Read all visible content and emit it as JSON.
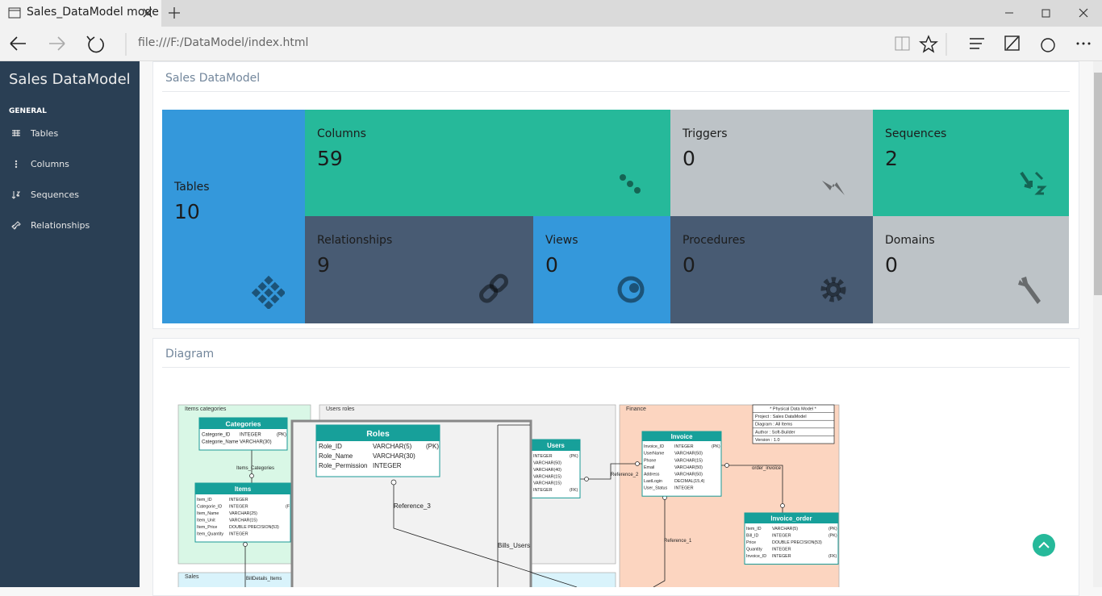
{
  "browser": {
    "tab_title": "Sales_DataModel mode",
    "url": "file:///F:/DataModel/index.html"
  },
  "sidebar": {
    "title": "Sales DataModel",
    "section": "GENERAL",
    "menu": [
      "Tables",
      "Columns",
      "Sequences",
      "Relationships"
    ]
  },
  "summary": {
    "title": "Sales DataModel",
    "tiles": [
      {
        "label": "Tables",
        "value": 10
      },
      {
        "label": "Columns",
        "value": 59
      },
      {
        "label": "Triggers",
        "value": 0
      },
      {
        "label": "Sequences",
        "value": 2
      },
      {
        "label": "Relationships",
        "value": 9
      },
      {
        "label": "Views",
        "value": 0
      },
      {
        "label": "Procedures",
        "value": 0
      },
      {
        "label": "Domains",
        "value": 0
      }
    ]
  },
  "diagram": {
    "title": "Diagram",
    "groups": [
      "Items categories",
      "Users roles",
      "Finance",
      "Sales"
    ],
    "tables": [
      {
        "name": "Categories",
        "rows": [
          [
            "Categorie_ID",
            "INTEGER",
            "(PK)"
          ],
          [
            "Categorie_Name",
            "VARCHAR(30)"
          ]
        ]
      },
      {
        "name": "Items",
        "rows": [
          [
            "Item_ID",
            "INTEGER"
          ],
          [
            "Categorie_ID",
            "INTEGER",
            "(F"
          ],
          [
            "Item_Name",
            "VARCHAR(25)"
          ],
          [
            "Item_Unit",
            "VARCHAR(15)"
          ],
          [
            "Item_Price",
            "DOUBLE PRECISION(53)"
          ],
          [
            "Item_Quantity",
            "INTEGER"
          ]
        ]
      },
      {
        "name": "Roles",
        "rows": [
          [
            "Role_ID",
            "VARCHAR(5)",
            "(PK)"
          ],
          [
            "Role_Name",
            "VARCHAR(30)"
          ],
          [
            "Role_Permission",
            "INTEGER"
          ]
        ]
      },
      {
        "name": "Users",
        "rows": [
          [
            "INTEGER",
            "(PK)"
          ],
          [
            "VARCHAR(50)"
          ],
          [
            "VARCHAR(40)"
          ],
          [
            "VARCHAR(15)"
          ],
          [
            "VARCHAR(15)"
          ],
          [
            "INTEGER",
            "(FK)"
          ]
        ]
      },
      {
        "name": "Invoice",
        "rows": [
          [
            "Invoice_ID",
            "INTEGER",
            "(PK)"
          ],
          [
            "UserName",
            "VARCHAR(50)"
          ],
          [
            "Phone",
            "VARCHAR(15)"
          ],
          [
            "Email",
            "VARCHAR(50)"
          ],
          [
            "Address",
            "VARCHAR(50)"
          ],
          [
            "LastLogin",
            "DECIMAL(15,4)"
          ],
          [
            "User_Status",
            "INTEGER"
          ]
        ]
      },
      {
        "name": "Invoice_order",
        "rows": [
          [
            "Item_ID",
            "VARCHAR(5)",
            "(PK)"
          ],
          [
            "Bill_ID",
            "INTEGER",
            "(PK)"
          ],
          [
            "Price",
            "DOUBLE PRECISION(53)"
          ],
          [
            "Quantity",
            "INTEGER"
          ],
          [
            "Invoice_ID",
            "INTEGER",
            "(FK)"
          ]
        ]
      }
    ],
    "note": [
      "* Physical Data Model *",
      "Project : Sales DataModel",
      "Diagram : All Items",
      "Author : Soft-Builder",
      "Version : 1.0"
    ],
    "relationships": [
      "Items_Categories",
      "Reference_3",
      "Bills_Users",
      "Reference_2",
      "order_invoice",
      "Reference_1",
      "BillDetails_Items"
    ]
  }
}
